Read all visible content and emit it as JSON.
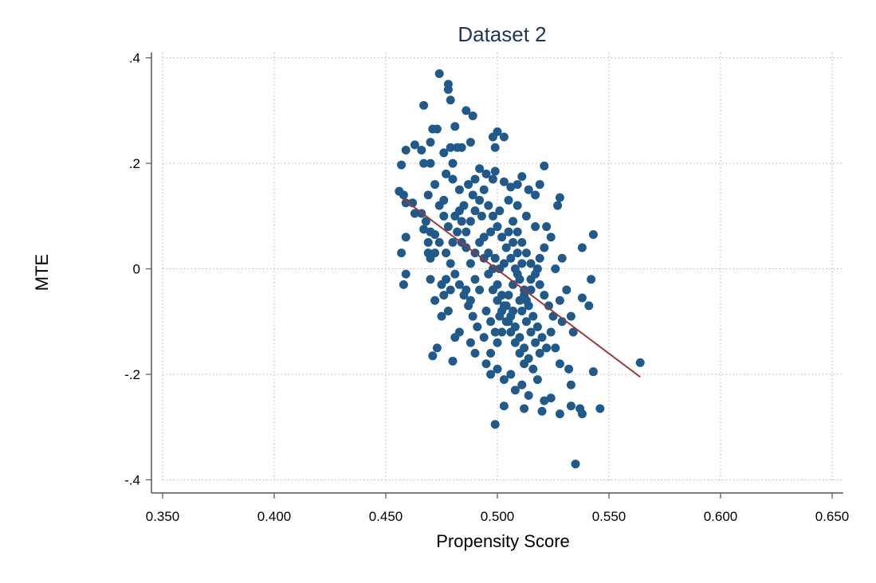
{
  "chart_data": {
    "type": "scatter",
    "title": "Dataset 2",
    "xlabel": "Propensity Score",
    "ylabel": "MTE",
    "xlim": [
      0.345,
      0.655
    ],
    "ylim": [
      -0.425,
      0.41
    ],
    "xticks": [
      0.35,
      0.4,
      0.45,
      0.5,
      0.55,
      0.6,
      0.65
    ],
    "xtick_labels": [
      "0.350",
      "0.400",
      "0.450",
      "0.500",
      "0.550",
      "0.600",
      "0.650"
    ],
    "yticks": [
      -0.4,
      -0.2,
      0,
      0.2,
      0.4
    ],
    "ytick_labels": [
      "-.4",
      "-.2",
      "0",
      ".2",
      ".4"
    ],
    "grid": true,
    "colors": {
      "points": "#1f5a8a",
      "fit_line": "#9a3a3a",
      "title": "#1f3559"
    },
    "series": [
      {
        "kind": "points",
        "points": [
          [
            0.474,
            0.37
          ],
          [
            0.478,
            0.35
          ],
          [
            0.478,
            0.34
          ],
          [
            0.479,
            0.32
          ],
          [
            0.467,
            0.31
          ],
          [
            0.486,
            0.3
          ],
          [
            0.489,
            0.29
          ],
          [
            0.5,
            0.26
          ],
          [
            0.503,
            0.25
          ],
          [
            0.498,
            0.25
          ],
          [
            0.471,
            0.265
          ],
          [
            0.473,
            0.265
          ],
          [
            0.481,
            0.27
          ],
          [
            0.463,
            0.235
          ],
          [
            0.466,
            0.225
          ],
          [
            0.47,
            0.24
          ],
          [
            0.476,
            0.22
          ],
          [
            0.479,
            0.23
          ],
          [
            0.482,
            0.23
          ],
          [
            0.484,
            0.23
          ],
          [
            0.488,
            0.24
          ],
          [
            0.459,
            0.225
          ],
          [
            0.457,
            0.197
          ],
          [
            0.467,
            0.2
          ],
          [
            0.47,
            0.2
          ],
          [
            0.48,
            0.2
          ],
          [
            0.499,
            0.23
          ],
          [
            0.521,
            0.195
          ],
          [
            0.499,
            0.185
          ],
          [
            0.458,
            0.14
          ],
          [
            0.456,
            0.147
          ],
          [
            0.459,
            0.125
          ],
          [
            0.462,
            0.125
          ],
          [
            0.463,
            0.105
          ],
          [
            0.466,
            0.105
          ],
          [
            0.468,
            0.09
          ],
          [
            0.467,
            0.075
          ],
          [
            0.47,
            0.07
          ],
          [
            0.472,
            0.065
          ],
          [
            0.469,
            0.05
          ],
          [
            0.474,
            0.05
          ],
          [
            0.459,
            0.06
          ],
          [
            0.457,
            0.03
          ],
          [
            0.469,
            0.03
          ],
          [
            0.472,
            0.03
          ],
          [
            0.47,
            0.02
          ],
          [
            0.472,
            0.16
          ],
          [
            0.469,
            0.14
          ],
          [
            0.476,
            0.13
          ],
          [
            0.48,
            0.17
          ],
          [
            0.477,
            0.18
          ],
          [
            0.483,
            0.15
          ],
          [
            0.487,
            0.16
          ],
          [
            0.49,
            0.17
          ],
          [
            0.492,
            0.19
          ],
          [
            0.495,
            0.18
          ],
          [
            0.498,
            0.17
          ],
          [
            0.503,
            0.165
          ],
          [
            0.506,
            0.155
          ],
          [
            0.509,
            0.16
          ],
          [
            0.511,
            0.175
          ],
          [
            0.514,
            0.15
          ],
          [
            0.517,
            0.14
          ],
          [
            0.519,
            0.16
          ],
          [
            0.459,
            -0.01
          ],
          [
            0.458,
            -0.03
          ],
          [
            0.47,
            -0.02
          ],
          [
            0.472,
            -0.06
          ],
          [
            0.475,
            -0.09
          ],
          [
            0.473,
            -0.15
          ],
          [
            0.471,
            -0.165
          ],
          [
            0.48,
            -0.175
          ],
          [
            0.481,
            -0.13
          ],
          [
            0.483,
            -0.12
          ],
          [
            0.478,
            -0.08
          ],
          [
            0.476,
            -0.05
          ],
          [
            0.477,
            -0.02
          ],
          [
            0.475,
            -0.03
          ],
          [
            0.479,
            -0.04
          ],
          [
            0.488,
            -0.14
          ],
          [
            0.49,
            -0.16
          ],
          [
            0.495,
            -0.18
          ],
          [
            0.497,
            -0.2
          ],
          [
            0.5,
            -0.19
          ],
          [
            0.503,
            -0.21
          ],
          [
            0.506,
            -0.2
          ],
          [
            0.508,
            -0.23
          ],
          [
            0.511,
            -0.22
          ],
          [
            0.514,
            -0.24
          ],
          [
            0.503,
            -0.26
          ],
          [
            0.499,
            -0.295
          ],
          [
            0.512,
            -0.265
          ],
          [
            0.52,
            -0.27
          ],
          [
            0.521,
            -0.25
          ],
          [
            0.524,
            -0.245
          ],
          [
            0.528,
            -0.275
          ],
          [
            0.533,
            -0.26
          ],
          [
            0.537,
            -0.265
          ],
          [
            0.538,
            -0.275
          ],
          [
            0.546,
            -0.265
          ],
          [
            0.535,
            -0.37
          ],
          [
            0.564,
            -0.178
          ],
          [
            0.543,
            -0.195
          ],
          [
            0.541,
            -0.07
          ],
          [
            0.542,
            -0.02
          ],
          [
            0.538,
            -0.055
          ],
          [
            0.538,
            0.04
          ],
          [
            0.543,
            0.065
          ],
          [
            0.532,
            -0.19
          ],
          [
            0.533,
            -0.22
          ],
          [
            0.528,
            -0.18
          ],
          [
            0.526,
            -0.15
          ],
          [
            0.524,
            -0.12
          ],
          [
            0.529,
            -0.1
          ],
          [
            0.534,
            -0.12
          ],
          [
            0.533,
            -0.09
          ],
          [
            0.528,
            -0.06
          ],
          [
            0.531,
            -0.04
          ],
          [
            0.526,
            0.0
          ],
          [
            0.529,
            0.02
          ],
          [
            0.527,
            0.12
          ],
          [
            0.528,
            0.135
          ],
          [
            0.522,
            0.08
          ],
          [
            0.524,
            0.06
          ],
          [
            0.521,
            0.04
          ],
          [
            0.519,
            0.02
          ],
          [
            0.518,
            0.0
          ],
          [
            0.515,
            -0.02
          ],
          [
            0.512,
            -0.04
          ],
          [
            0.51,
            -0.06
          ],
          [
            0.507,
            -0.08
          ],
          [
            0.505,
            -0.1
          ],
          [
            0.502,
            -0.12
          ],
          [
            0.5,
            -0.14
          ],
          [
            0.497,
            -0.16
          ],
          [
            0.494,
            -0.13
          ],
          [
            0.491,
            -0.11
          ],
          [
            0.489,
            -0.09
          ],
          [
            0.487,
            -0.07
          ],
          [
            0.485,
            -0.05
          ],
          [
            0.483,
            -0.03
          ],
          [
            0.481,
            -0.01
          ],
          [
            0.479,
            0.01
          ],
          [
            0.477,
            0.03
          ],
          [
            0.484,
            0.05
          ],
          [
            0.486,
            0.07
          ],
          [
            0.488,
            0.09
          ],
          [
            0.49,
            0.11
          ],
          [
            0.492,
            0.13
          ],
          [
            0.494,
            0.15
          ],
          [
            0.496,
            0.12
          ],
          [
            0.498,
            0.1
          ],
          [
            0.5,
            0.08
          ],
          [
            0.502,
            0.06
          ],
          [
            0.504,
            0.04
          ],
          [
            0.506,
            0.02
          ],
          [
            0.508,
            0.0
          ],
          [
            0.51,
            -0.02
          ],
          [
            0.512,
            -0.05
          ],
          [
            0.514,
            -0.07
          ],
          [
            0.516,
            -0.09
          ],
          [
            0.518,
            -0.11
          ],
          [
            0.52,
            -0.13
          ],
          [
            0.522,
            -0.15
          ],
          [
            0.484,
            0.09
          ],
          [
            0.486,
            0.04
          ],
          [
            0.488,
            0.01
          ],
          [
            0.49,
            -0.02
          ],
          [
            0.492,
            -0.04
          ],
          [
            0.494,
            0.06
          ],
          [
            0.496,
            0.03
          ],
          [
            0.498,
            0.0
          ],
          [
            0.5,
            -0.03
          ],
          [
            0.502,
            -0.05
          ],
          [
            0.504,
            -0.07
          ],
          [
            0.506,
            -0.09
          ],
          [
            0.508,
            -0.11
          ],
          [
            0.51,
            -0.13
          ],
          [
            0.512,
            -0.15
          ],
          [
            0.514,
            -0.17
          ],
          [
            0.516,
            -0.19
          ],
          [
            0.518,
            -0.21
          ],
          [
            0.507,
            0.09
          ],
          [
            0.509,
            0.07
          ],
          [
            0.511,
            0.05
          ],
          [
            0.513,
            0.03
          ],
          [
            0.515,
            0.01
          ],
          [
            0.517,
            -0.01
          ],
          [
            0.519,
            -0.03
          ],
          [
            0.521,
            -0.05
          ],
          [
            0.523,
            -0.07
          ],
          [
            0.525,
            -0.09
          ],
          [
            0.485,
            0.12
          ],
          [
            0.489,
            0.14
          ],
          [
            0.493,
            0.1
          ],
          [
            0.497,
            0.07
          ],
          [
            0.501,
            0.11
          ],
          [
            0.505,
            0.13
          ],
          [
            0.509,
            0.12
          ],
          [
            0.513,
            0.1
          ],
          [
            0.517,
            0.08
          ],
          [
            0.482,
            0.07
          ],
          [
            0.48,
            0.05
          ],
          [
            0.478,
            0.08
          ],
          [
            0.476,
            0.1
          ],
          [
            0.474,
            0.12
          ],
          [
            0.481,
            0.1
          ],
          [
            0.483,
            0.11
          ],
          [
            0.495,
            -0.08
          ],
          [
            0.497,
            -0.1
          ],
          [
            0.499,
            -0.12
          ],
          [
            0.501,
            -0.09
          ],
          [
            0.503,
            -0.07
          ],
          [
            0.505,
            -0.05
          ],
          [
            0.507,
            -0.03
          ],
          [
            0.509,
            -0.01
          ],
          [
            0.511,
            0.01
          ],
          [
            0.513,
            -0.1
          ],
          [
            0.515,
            -0.12
          ],
          [
            0.517,
            -0.14
          ],
          [
            0.519,
            -0.16
          ],
          [
            0.488,
            -0.06
          ],
          [
            0.486,
            -0.04
          ],
          [
            0.49,
            0.03
          ],
          [
            0.492,
            0.05
          ],
          [
            0.494,
            0.02
          ],
          [
            0.496,
            -0.01
          ],
          [
            0.498,
            -0.04
          ],
          [
            0.5,
            -0.06
          ],
          [
            0.502,
            -0.08
          ],
          [
            0.504,
            -0.1
          ],
          [
            0.506,
            -0.12
          ],
          [
            0.508,
            -0.14
          ],
          [
            0.51,
            -0.16
          ],
          [
            0.512,
            -0.18
          ],
          [
            0.499,
            0.02
          ],
          [
            0.501,
            0.0
          ],
          [
            0.503,
            0.01
          ],
          [
            0.505,
            0.07
          ],
          [
            0.507,
            0.05
          ],
          [
            0.509,
            0.03
          ],
          [
            0.511,
            -0.08
          ],
          [
            0.513,
            -0.06
          ],
          [
            0.515,
            -0.04
          ]
        ]
      },
      {
        "kind": "fit_line",
        "x": [
          0.457,
          0.564
        ],
        "y": [
          0.135,
          -0.205
        ]
      }
    ]
  }
}
